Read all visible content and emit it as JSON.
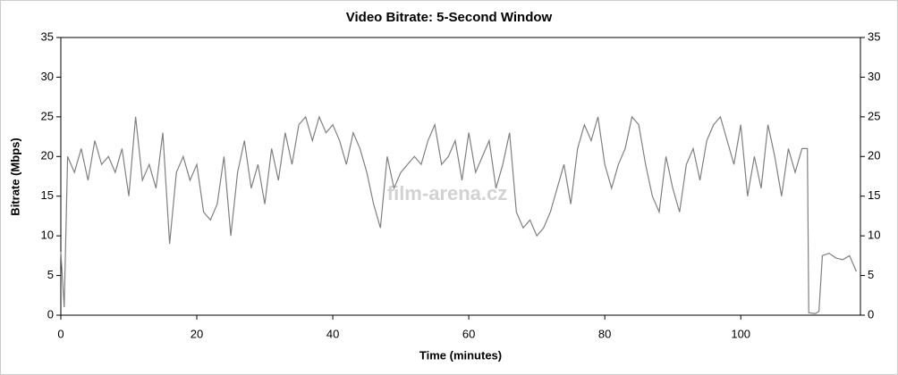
{
  "chart_data": {
    "type": "line",
    "title": "Video Bitrate: 5-Second Window",
    "xlabel": "Time (minutes)",
    "ylabel": "Bitrate (Mbps)",
    "watermark": "film-arena.cz",
    "x": [
      0,
      0.5,
      1,
      2,
      3,
      4,
      5,
      6,
      7,
      8,
      9,
      10,
      11,
      12,
      13,
      14,
      15,
      16,
      17,
      18,
      19,
      20,
      21,
      22,
      23,
      24,
      25,
      26,
      27,
      28,
      29,
      30,
      31,
      32,
      33,
      34,
      35,
      36,
      37,
      38,
      39,
      40,
      41,
      42,
      43,
      44,
      45,
      46,
      47,
      48,
      49,
      50,
      51,
      52,
      53,
      54,
      55,
      56,
      57,
      58,
      59,
      60,
      61,
      62,
      63,
      64,
      65,
      66,
      67,
      68,
      69,
      70,
      71,
      72,
      73,
      74,
      75,
      76,
      77,
      78,
      79,
      80,
      81,
      82,
      83,
      84,
      85,
      86,
      87,
      88,
      89,
      90,
      91,
      92,
      93,
      94,
      95,
      96,
      97,
      98,
      99,
      100,
      101,
      102,
      103,
      104,
      105,
      106,
      107,
      108,
      109,
      109.8,
      110,
      111,
      111.5,
      112,
      113,
      114,
      115,
      116,
      117
    ],
    "series": [
      {
        "name": "Bitrate",
        "color": "#808080",
        "values": [
          8,
          1,
          20,
          18,
          21,
          17,
          22,
          19,
          20,
          18,
          21,
          15,
          25,
          17,
          19,
          16,
          23,
          9,
          18,
          20,
          17,
          19,
          13,
          12,
          14,
          20,
          10,
          18,
          22,
          16,
          19,
          14,
          21,
          17,
          23,
          19,
          24,
          25,
          22,
          25,
          23,
          24,
          22,
          19,
          23,
          21,
          18,
          14,
          11,
          20,
          16,
          18,
          19,
          20,
          19,
          22,
          24,
          19,
          20,
          22,
          17,
          23,
          18,
          20,
          22,
          16,
          19,
          23,
          13,
          11,
          12,
          10,
          11,
          13,
          16,
          19,
          14,
          21,
          24,
          22,
          25,
          19,
          16,
          19,
          21,
          25,
          24,
          19,
          15,
          13,
          20,
          16,
          13,
          19,
          21,
          17,
          22,
          24,
          25,
          22,
          19,
          24,
          15,
          20,
          16,
          24,
          20,
          15,
          21,
          18,
          21,
          21,
          0.3,
          0.2,
          0.5,
          7.5,
          7.8,
          7.2,
          7,
          7.5,
          5.5
        ]
      }
    ],
    "xlim": [
      0,
      117.6
    ],
    "xticks": [
      0,
      20,
      40,
      60,
      80,
      100
    ],
    "ylim": [
      0,
      35
    ],
    "yticks": [
      0,
      5,
      10,
      15,
      20,
      25,
      30,
      35
    ],
    "y2lim": [
      0,
      35
    ],
    "y2ticks": [
      0,
      5,
      10,
      15,
      20,
      25,
      30,
      35
    ]
  }
}
